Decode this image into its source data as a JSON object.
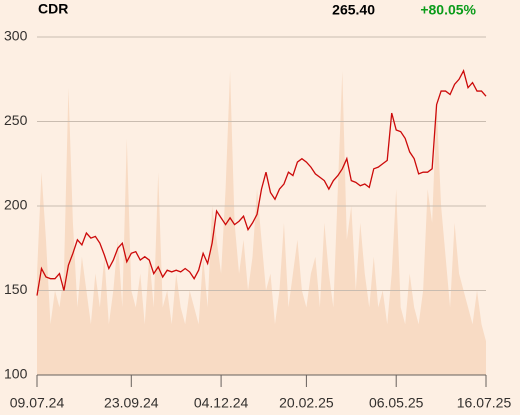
{
  "chart_data": {
    "type": "line",
    "title": "CDR",
    "last_price": "265.40",
    "change": "+80.05%",
    "change_color": "#0b9c1a",
    "xticks": [
      {
        "value": 0,
        "label": "09.07.24"
      },
      {
        "value": 21,
        "label": "23.09.24"
      },
      {
        "value": 41,
        "label": "04.12.24"
      },
      {
        "value": 60,
        "label": "20.02.25"
      },
      {
        "value": 80,
        "label": "06.05.25"
      },
      {
        "value": 100,
        "label": "16.07.25"
      }
    ],
    "xlim": [
      0,
      100
    ],
    "ylim": [
      100,
      300
    ],
    "yticks": [
      100,
      150,
      200,
      250,
      300
    ],
    "y2lim": [
      0,
      100
    ],
    "grid": true,
    "series": [
      {
        "color": "#cc0a0a",
        "values": [
          147,
          163,
          158,
          157,
          157,
          160,
          150,
          165,
          172,
          180,
          177,
          184,
          181,
          182,
          178,
          171,
          163,
          168,
          175,
          178,
          167,
          172,
          173,
          168,
          170,
          168,
          160,
          164,
          158,
          162,
          161,
          162,
          161,
          163,
          161,
          157,
          162,
          172,
          166,
          178,
          197,
          193,
          189,
          193,
          189,
          191,
          194,
          186,
          190,
          195,
          210,
          220,
          208,
          204,
          210,
          213,
          220,
          218,
          226,
          228,
          226,
          223,
          219,
          217,
          215,
          210,
          215,
          218,
          222,
          228,
          215,
          214,
          212,
          213,
          211,
          222,
          223,
          225,
          227,
          255,
          245,
          244,
          240,
          232,
          228,
          219,
          220,
          220,
          222,
          260,
          268,
          268,
          266,
          272,
          275,
          280,
          270,
          273,
          268,
          268,
          265
        ]
      },
      {
        "type": "area",
        "axis": "y2",
        "color": "#f8dbc4",
        "values": [
          30,
          60,
          40,
          15,
          25,
          20,
          30,
          85,
          45,
          20,
          35,
          25,
          15,
          30,
          20,
          35,
          15,
          25,
          40,
          20,
          70,
          25,
          20,
          30,
          15,
          35,
          20,
          60,
          20,
          25,
          15,
          30,
          20,
          15,
          25,
          20,
          15,
          35,
          20,
          50,
          40,
          30,
          55,
          90,
          45,
          30,
          40,
          25,
          35,
          55,
          40,
          25,
          30,
          15,
          25,
          45,
          20,
          30,
          40,
          25,
          20,
          30,
          35,
          20,
          45,
          30,
          20,
          55,
          90,
          40,
          50,
          25,
          45,
          30,
          20,
          35,
          20,
          25,
          15,
          30,
          55,
          20,
          15,
          30,
          20,
          15,
          25,
          55,
          45,
          80,
          50,
          35,
          20,
          45,
          30,
          25,
          20,
          15,
          25,
          15,
          10
        ]
      }
    ]
  }
}
